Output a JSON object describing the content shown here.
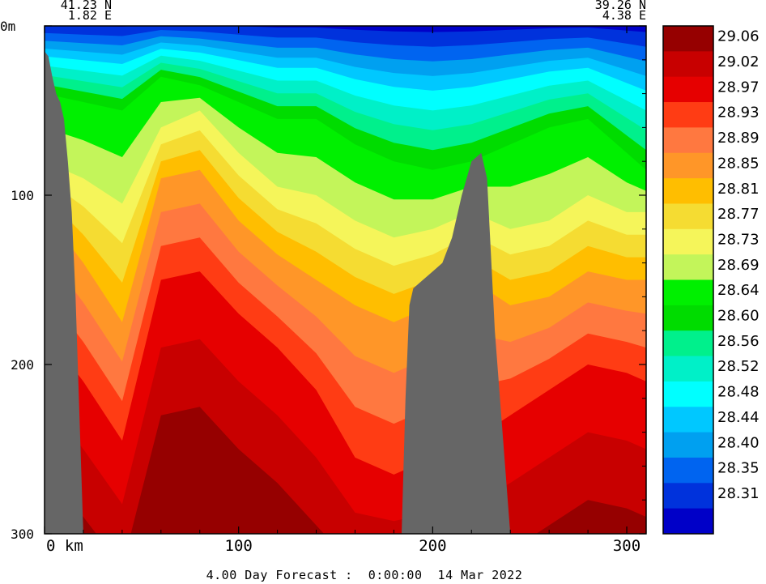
{
  "chart_data": {
    "type": "heatmap",
    "title": "",
    "xlabel": "",
    "ylabel": "",
    "x_units_label": "km",
    "y_units_label": "m",
    "xlim": [
      0,
      310
    ],
    "ylim": [
      0,
      300
    ],
    "x_ticks": [
      0,
      100,
      200,
      300
    ],
    "y_ticks": [
      0,
      100,
      200,
      300
    ],
    "x_tick_labels": [
      "0 km",
      "100",
      "200",
      "300"
    ],
    "y_tick_labels": [
      "0m",
      "100",
      "200",
      "300"
    ],
    "y_inverted": true,
    "start_point": {
      "lat": "41.23 N",
      "lon": "1.82 E"
    },
    "end_point": {
      "lat": "39.26 N",
      "lon": "4.38 E"
    },
    "colorbar": {
      "levels": [
        "29.06",
        "29.02",
        "28.97",
        "28.93",
        "28.89",
        "28.85",
        "28.81",
        "28.77",
        "28.73",
        "28.69",
        "28.64",
        "28.60",
        "28.56",
        "28.52",
        "28.48",
        "28.44",
        "28.40",
        "28.35",
        "28.31"
      ],
      "colors": [
        "#960000",
        "#c80000",
        "#e60000",
        "#ff3c14",
        "#ff7840",
        "#ff9628",
        "#ffbe00",
        "#f5dc32",
        "#f5f55a",
        "#c3f55a",
        "#00f000",
        "#00dc00",
        "#00f08c",
        "#00f0c8",
        "#00ffff",
        "#00c8ff",
        "#00a0f0",
        "#0064f0",
        "#0032dc",
        "#0000c8"
      ]
    },
    "field_description_levels": {
      "surface_band_values_at_km": {
        "x": [
          0,
          20,
          40,
          60,
          80,
          100,
          120,
          140,
          160,
          180,
          200,
          220,
          240,
          260,
          280,
          300,
          310
        ],
        "upper_green_depth_m": [
          40,
          45,
          50,
          30,
          35,
          45,
          55,
          55,
          70,
          80,
          85,
          80,
          70,
          60,
          55,
          75,
          85
        ],
        "yellow_depth_m": [
          80,
          90,
          105,
          60,
          50,
          75,
          95,
          100,
          115,
          125,
          120,
          110,
          120,
          115,
          100,
          110,
          110
        ],
        "orange_depth_m": [
          110,
          140,
          175,
          90,
          85,
          115,
          135,
          150,
          165,
          175,
          165,
          150,
          165,
          160,
          145,
          150,
          150
        ],
        "red_depth_m": [
          180,
          210,
          245,
          150,
          145,
          170,
          190,
          215,
          255,
          265,
          255,
          245,
          230,
          215,
          200,
          205,
          210
        ]
      }
    },
    "terrain": [
      {
        "name": "left-slope",
        "x": [
          0,
          2,
          4,
          6,
          8,
          10,
          12,
          14,
          16,
          18,
          20
        ],
        "bottom_depth_m": [
          15,
          18,
          30,
          40,
          45,
          55,
          80,
          110,
          160,
          230,
          300
        ]
      },
      {
        "name": "seamount",
        "x": [
          184,
          186,
          188,
          190,
          195,
          200,
          205,
          210,
          215,
          220,
          225,
          228,
          232,
          236,
          240
        ],
        "top_depth_m": [
          300,
          220,
          165,
          155,
          150,
          145,
          140,
          125,
          100,
          80,
          75,
          90,
          180,
          240,
          300
        ]
      }
    ]
  },
  "labels": {
    "start_lat": "41.23 N",
    "start_lon": "1.82 E",
    "end_lat": "39.26 N",
    "end_lon": "4.38 E",
    "footer": "4.00 Day Forecast :  0:00:00  14 Mar 2022"
  }
}
